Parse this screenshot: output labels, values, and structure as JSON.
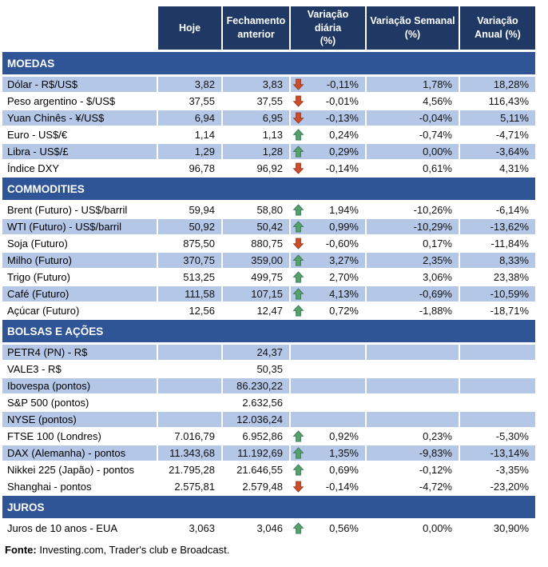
{
  "table": {
    "columns": [
      "Hoje",
      "Fechamento\nanterior",
      "Variação diária\n(%)",
      "Variação Semanal\n(%)",
      "Variação\nAnual (%)"
    ]
  },
  "sections": [
    {
      "id": "moedas",
      "title": "MOEDAS",
      "rows": [
        {
          "label": "Dólar - R$/US$",
          "hoje": "3,82",
          "fechamento": "3,83",
          "arrow": "down",
          "diaria": "-0,11%",
          "semanal": "1,78%",
          "anual": "18,28%",
          "shaded": true
        },
        {
          "label": "Peso argentino - $/US$",
          "hoje": "37,55",
          "fechamento": "37,55",
          "arrow": "down",
          "diaria": "-0,01%",
          "semanal": "4,56%",
          "anual": "116,43%",
          "shaded": false
        },
        {
          "label": "Yuan Chinês - ¥/US$",
          "hoje": "6,94",
          "fechamento": "6,95",
          "arrow": "down",
          "diaria": "-0,13%",
          "semanal": "-0,04%",
          "anual": "5,11%",
          "shaded": true
        },
        {
          "label": "Euro - US$/€",
          "hoje": "1,14",
          "fechamento": "1,13",
          "arrow": "up",
          "diaria": "0,24%",
          "semanal": "-0,74%",
          "anual": "-4,71%",
          "shaded": false
        },
        {
          "label": "Libra - US$/£",
          "hoje": "1,29",
          "fechamento": "1,28",
          "arrow": "up",
          "diaria": "0,29%",
          "semanal": "0,00%",
          "anual": "-3,64%",
          "shaded": true
        },
        {
          "label": "Índice DXY",
          "hoje": "96,78",
          "fechamento": "96,92",
          "arrow": "down",
          "diaria": "-0,14%",
          "semanal": "0,61%",
          "anual": "4,31%",
          "shaded": false
        }
      ]
    },
    {
      "id": "commodities",
      "title": "COMMODITIES",
      "rows": [
        {
          "label": "Brent (Futuro) - US$/barril",
          "hoje": "59,94",
          "fechamento": "58,80",
          "arrow": "up",
          "diaria": "1,94%",
          "semanal": "-10,26%",
          "anual": "-6,14%",
          "shaded": false
        },
        {
          "label": "WTI (Futuro) - US$/barril",
          "hoje": "50,92",
          "fechamento": "50,42",
          "arrow": "up",
          "diaria": "0,99%",
          "semanal": "-10,29%",
          "anual": "-13,62%",
          "shaded": true
        },
        {
          "label": "Soja (Futuro)",
          "hoje": "875,50",
          "fechamento": "880,75",
          "arrow": "down",
          "diaria": "-0,60%",
          "semanal": "0,17%",
          "anual": "-11,84%",
          "shaded": false
        },
        {
          "label": "Milho (Futuro)",
          "hoje": "370,75",
          "fechamento": "359,00",
          "arrow": "up",
          "diaria": "3,27%",
          "semanal": "2,35%",
          "anual": "8,33%",
          "shaded": true
        },
        {
          "label": "Trigo (Futuro)",
          "hoje": "513,25",
          "fechamento": "499,75",
          "arrow": "up",
          "diaria": "2,70%",
          "semanal": "3,06%",
          "anual": "23,38%",
          "shaded": false
        },
        {
          "label": "Café (Futuro)",
          "hoje": "111,58",
          "fechamento": "107,15",
          "arrow": "up",
          "diaria": "4,13%",
          "semanal": "-0,69%",
          "anual": "-10,59%",
          "shaded": true
        },
        {
          "label": "Açúcar (Futuro)",
          "hoje": "12,56",
          "fechamento": "12,47",
          "arrow": "up",
          "diaria": "0,72%",
          "semanal": "-1,88%",
          "anual": "-18,71%",
          "shaded": false
        }
      ]
    },
    {
      "id": "bolsas-e-acoes",
      "title": "BOLSAS E AÇÕES",
      "rows": [
        {
          "label": "PETR4 (PN) - R$",
          "hoje": "",
          "fechamento": "24,37",
          "arrow": "",
          "diaria": "",
          "semanal": "",
          "anual": "",
          "shaded": true
        },
        {
          "label": "VALE3 - R$",
          "hoje": "",
          "fechamento": "50,35",
          "arrow": "",
          "diaria": "",
          "semanal": "",
          "anual": "",
          "shaded": false
        },
        {
          "label": "Ibovespa (pontos)",
          "hoje": "",
          "fechamento": "86.230,22",
          "arrow": "",
          "diaria": "",
          "semanal": "",
          "anual": "",
          "shaded": true
        },
        {
          "label": "S&P 500 (pontos)",
          "hoje": "",
          "fechamento": "2.632,56",
          "arrow": "",
          "diaria": "",
          "semanal": "",
          "anual": "",
          "shaded": false
        },
        {
          "label": "NYSE (pontos)",
          "hoje": "",
          "fechamento": "12.036,24",
          "arrow": "",
          "diaria": "",
          "semanal": "",
          "anual": "",
          "shaded": true
        },
        {
          "label": "FTSE 100 (Londres)",
          "hoje": "7.016,79",
          "fechamento": "6.952,86",
          "arrow": "up",
          "diaria": "0,92%",
          "semanal": "0,23%",
          "anual": "-5,30%",
          "shaded": false
        },
        {
          "label": "DAX (Alemanha) - pontos",
          "hoje": "11.343,68",
          "fechamento": "11.192,69",
          "arrow": "up",
          "diaria": "1,35%",
          "semanal": "-9,83%",
          "anual": "-13,14%",
          "shaded": true
        },
        {
          "label": "Nikkei 225 (Japão) - pontos",
          "hoje": "21.795,28",
          "fechamento": "21.646,55",
          "arrow": "up",
          "diaria": "0,69%",
          "semanal": "-0,12%",
          "anual": "-3,35%",
          "shaded": false
        },
        {
          "label": "Shanghai - pontos",
          "hoje": "2.575,81",
          "fechamento": "2.579,48",
          "arrow": "down",
          "diaria": "-0,14%",
          "semanal": "-4,72%",
          "anual": "-23,20%",
          "shaded": false
        }
      ]
    },
    {
      "id": "juros",
      "title": "JUROS",
      "rows": [
        {
          "label": "Juros de 10 anos - EUA",
          "hoje": "3,063",
          "fechamento": "3,046",
          "arrow": "up",
          "diaria": "0,56%",
          "semanal": "0,00%",
          "anual": "30,90%",
          "shaded": false
        }
      ]
    }
  ],
  "footer": {
    "label": "Fonte:",
    "text": " Investing.com, Trader's club e Broadcast."
  },
  "colors": {
    "header_bg": "#1F3864",
    "section_bg": "#2F5597",
    "stripe_bg": "#B5C7E7",
    "up_fill": "#57A06B",
    "up_stroke": "#2F7050",
    "down_fill": "#CC4C2B",
    "down_stroke": "#8E3218"
  }
}
